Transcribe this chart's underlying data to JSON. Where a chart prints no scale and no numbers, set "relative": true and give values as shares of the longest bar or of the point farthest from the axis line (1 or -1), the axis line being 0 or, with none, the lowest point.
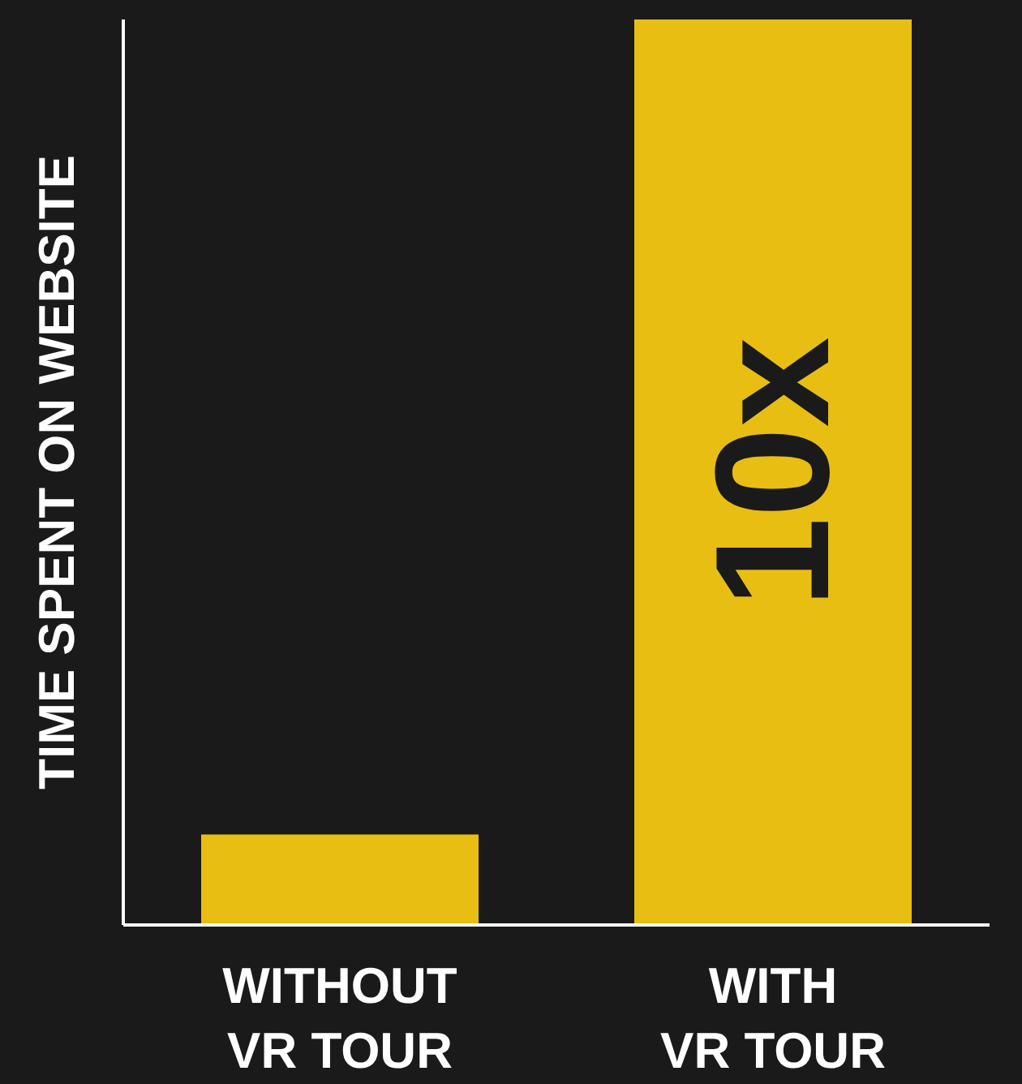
{
  "chart_data": {
    "type": "bar",
    "ylabel": "TIME SPENT ON WEBSITE",
    "categories": [
      "WITHOUT VR TOUR",
      "WITH VR TOUR"
    ],
    "values": [
      0.1,
      1
    ],
    "color": "#e8be12",
    "relative": true,
    "grid": false,
    "annotations": [
      "10x"
    ]
  }
}
